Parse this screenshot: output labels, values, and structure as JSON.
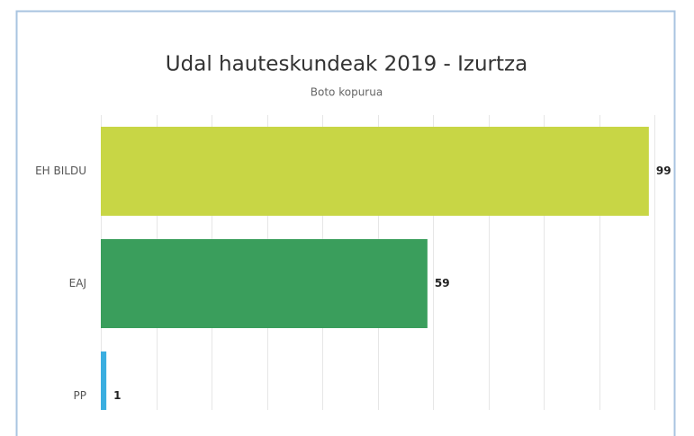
{
  "chart_data": {
    "type": "bar",
    "orientation": "horizontal",
    "title": "Udal hauteskundeak 2019 - Izurtza",
    "subtitle": "Boto kopurua",
    "categories": [
      "EH BILDU",
      "EAJ",
      "PP"
    ],
    "values": [
      99,
      59,
      1
    ],
    "colors": [
      "#c8d645",
      "#3a9e5c",
      "#3aaee0"
    ],
    "xlim": [
      0,
      100
    ],
    "xticks": [
      0,
      10,
      20,
      30,
      40,
      50,
      60,
      70,
      80,
      90,
      100
    ],
    "grid": true
  }
}
